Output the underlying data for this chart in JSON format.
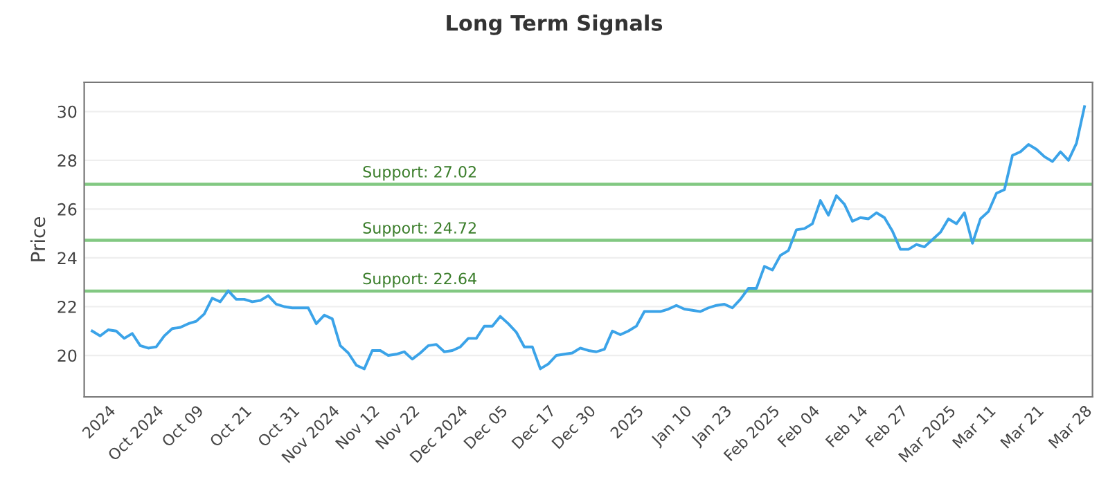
{
  "chart_data": {
    "type": "line",
    "title": "Long Term Signals",
    "ylabel": "Price",
    "categories": [
      null,
      null,
      "2024",
      null,
      null,
      null,
      null,
      null,
      "Oct 2024",
      null,
      null,
      null,
      null,
      "Oct 09",
      null,
      null,
      null,
      null,
      null,
      "Oct 21",
      null,
      null,
      null,
      null,
      null,
      "Oct 31",
      null,
      null,
      null,
      null,
      "Nov 2024",
      null,
      null,
      null,
      null,
      "Nov 12",
      null,
      null,
      null,
      null,
      "Nov 22",
      null,
      null,
      null,
      null,
      null,
      "Dec 2024",
      null,
      null,
      null,
      null,
      "Dec 05",
      null,
      null,
      null,
      null,
      null,
      "Dec 17",
      null,
      null,
      null,
      null,
      "Dec 30",
      null,
      null,
      null,
      null,
      null,
      "2025",
      null,
      null,
      null,
      null,
      null,
      "Jan 10",
      null,
      null,
      null,
      null,
      "Jan 23",
      null,
      null,
      null,
      null,
      null,
      "Feb 2025",
      null,
      null,
      null,
      null,
      "Feb 04",
      null,
      null,
      null,
      null,
      null,
      "Feb 14",
      null,
      null,
      null,
      null,
      "Feb 27",
      null,
      null,
      null,
      null,
      null,
      "Mar 2025",
      null,
      null,
      null,
      null,
      "Mar 11",
      null,
      null,
      null,
      null,
      null,
      "Mar 21",
      null,
      null,
      null,
      null,
      null,
      "Mar 28"
    ],
    "series": [
      {
        "color": "#3ba3e8",
        "values": [
          21.0,
          20.8,
          21.05,
          21.0,
          20.7,
          20.9,
          20.4,
          20.3,
          20.35,
          20.8,
          21.1,
          21.15,
          21.3,
          21.4,
          21.7,
          22.35,
          22.2,
          22.65,
          22.3,
          22.3,
          22.2,
          22.25,
          22.45,
          22.1,
          22.0,
          21.95,
          21.95,
          21.95,
          21.3,
          21.65,
          21.5,
          20.4,
          20.1,
          19.6,
          19.45,
          20.2,
          20.2,
          20.0,
          20.05,
          20.15,
          19.85,
          20.1,
          20.4,
          20.45,
          20.15,
          20.2,
          20.35,
          20.7,
          20.7,
          21.2,
          21.2,
          21.6,
          21.3,
          20.95,
          20.35,
          20.35,
          19.45,
          19.65,
          20.0,
          20.05,
          20.1,
          20.3,
          20.2,
          20.15,
          20.25,
          21.0,
          20.85,
          21.0,
          21.2,
          21.8,
          21.8,
          21.8,
          21.9,
          22.05,
          21.9,
          21.85,
          21.8,
          21.95,
          22.05,
          22.1,
          21.95,
          22.3,
          22.75,
          22.75,
          23.65,
          23.5,
          24.1,
          24.3,
          25.15,
          25.2,
          25.4,
          26.35,
          25.75,
          26.55,
          26.2,
          25.5,
          25.65,
          25.6,
          25.85,
          25.65,
          25.1,
          24.35,
          24.35,
          24.55,
          24.45,
          24.75,
          25.05,
          25.6,
          25.4,
          25.85,
          24.6,
          25.6,
          25.9,
          26.65,
          26.8,
          28.2,
          28.35,
          28.65,
          28.45,
          28.15,
          27.95,
          28.35,
          28.0,
          28.7,
          30.2
        ]
      }
    ],
    "ylim": [
      18.3,
      31.2
    ],
    "yticks": [
      20,
      22,
      24,
      26,
      28,
      30
    ],
    "grid": "y",
    "legend": false,
    "marker": "none",
    "line_style": "solid",
    "ref_lines": [
      {
        "axis": "y",
        "value": 27.02,
        "label": "Support: 27.02",
        "color": "#82c882"
      },
      {
        "axis": "y",
        "value": 24.72,
        "label": "Support: 24.72",
        "color": "#82c882"
      },
      {
        "axis": "y",
        "value": 22.64,
        "label": "Support: 22.64",
        "color": "#82c882"
      }
    ]
  }
}
